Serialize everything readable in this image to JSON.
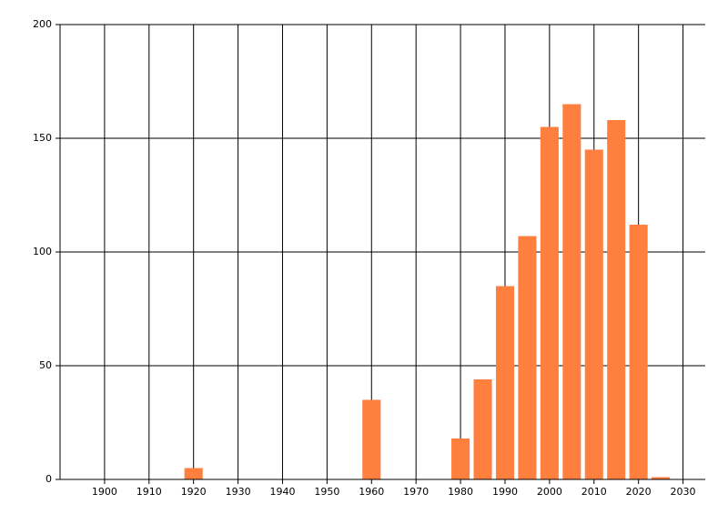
{
  "chart_data": {
    "type": "bar",
    "x": [
      1920,
      1960,
      1980,
      1985,
      1990,
      1995,
      2000,
      2005,
      2010,
      2015,
      2020,
      2025
    ],
    "values": [
      5,
      35,
      18,
      44,
      85,
      107,
      155,
      165,
      145,
      158,
      112,
      1
    ],
    "color": "#ff7f3f",
    "xlim": [
      1890,
      2035
    ],
    "xticks": [
      1900,
      1910,
      1920,
      1930,
      1940,
      1950,
      1960,
      1970,
      1980,
      1990,
      2000,
      2010,
      2020,
      2030
    ],
    "ylim": [
      0,
      200
    ],
    "yticks": [
      0,
      50,
      100,
      150,
      200
    ],
    "grid": true
  }
}
